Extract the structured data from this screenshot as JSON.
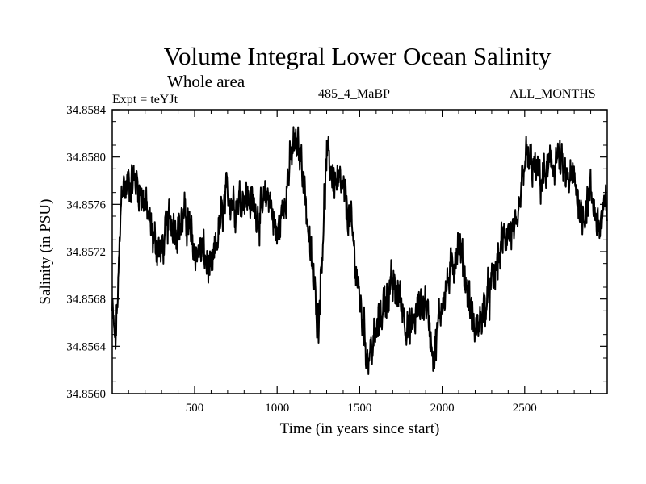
{
  "chart_data": {
    "type": "line",
    "title": "Volume Integral Lower Ocean Salinity",
    "subtitle": "Whole area",
    "experiment_label": "Expt = teYJt",
    "model_label": "485_4_MaBP",
    "months_label": "ALL_MONTHS",
    "xlabel": "Time (in years since start)",
    "ylabel": "Salinity (in PSU)",
    "xlim": [
      1,
      3000
    ],
    "ylim": [
      34.856,
      34.8584
    ],
    "xticks": [
      500,
      1000,
      1500,
      2000,
      2500
    ],
    "xtick_labels": [
      "500",
      "1000",
      "1500",
      "2000",
      "2500"
    ],
    "yticks": [
      34.856,
      34.8564,
      34.8568,
      34.8572,
      34.8576,
      34.858,
      34.8584
    ],
    "ytick_labels": [
      "34.8560",
      "34.8564",
      "34.8568",
      "34.8572",
      "34.8576",
      "34.8580",
      "34.8584"
    ],
    "line_color": "#000000",
    "series": [
      {
        "name": "salinity",
        "x": [
          1,
          20,
          40,
          60,
          80,
          100,
          150,
          200,
          250,
          300,
          350,
          400,
          450,
          500,
          550,
          600,
          650,
          700,
          750,
          800,
          850,
          900,
          950,
          1000,
          1050,
          1100,
          1150,
          1200,
          1250,
          1300,
          1350,
          1400,
          1450,
          1500,
          1550,
          1600,
          1650,
          1700,
          1750,
          1800,
          1850,
          1900,
          1950,
          2000,
          2050,
          2100,
          2150,
          2200,
          2250,
          2300,
          2350,
          2400,
          2450,
          2500,
          2550,
          2600,
          2650,
          2700,
          2750,
          2800,
          2850,
          2900,
          2950,
          3000
        ],
        "values": [
          34.8567,
          34.8564,
          34.857,
          34.8578,
          34.8577,
          34.8578,
          34.8578,
          34.8576,
          34.8573,
          34.8572,
          34.8575,
          34.8574,
          34.8575,
          34.8572,
          34.8572,
          34.857,
          34.8574,
          34.8577,
          34.8576,
          34.8577,
          34.8576,
          34.8575,
          34.8577,
          34.8573,
          34.8577,
          34.8581,
          34.858,
          34.8572,
          34.8566,
          34.858,
          34.8578,
          34.8577,
          34.8574,
          34.8568,
          34.8563,
          34.8565,
          34.8568,
          34.8569,
          34.8568,
          34.8565,
          34.8567,
          34.8568,
          34.8563,
          34.8568,
          34.857,
          34.8573,
          34.8569,
          34.8565,
          34.8567,
          34.8569,
          34.8572,
          34.8574,
          34.8573,
          34.858,
          34.8579,
          34.8578,
          34.8579,
          34.858,
          34.8578,
          34.8578,
          34.8575,
          34.8577,
          34.8574,
          34.8576
        ]
      }
    ]
  }
}
